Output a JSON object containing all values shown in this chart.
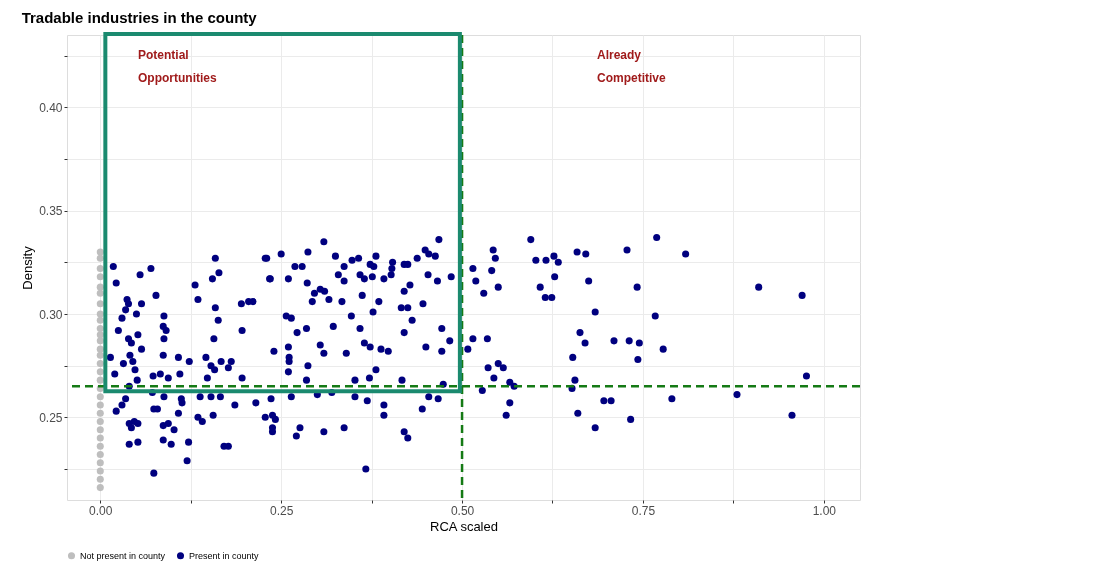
{
  "chart_data": {
    "type": "scatter",
    "title": "Tradable industries in the county",
    "xlabel": "RCA scaled",
    "ylabel": "Density",
    "xlim": [
      -0.046,
      1.05
    ],
    "ylim": [
      0.21,
      0.435
    ],
    "xticks": [
      {
        "value": 0,
        "label": "0.00"
      },
      {
        "value": 0.125,
        "label": null
      },
      {
        "value": 0.25,
        "label": "0.25"
      },
      {
        "value": 0.375,
        "label": null
      },
      {
        "value": 0.5,
        "label": "0.50"
      },
      {
        "value": 0.625,
        "label": null
      },
      {
        "value": 0.75,
        "label": "0.75"
      },
      {
        "value": 0.875,
        "label": null
      },
      {
        "value": 1,
        "label": "1.00"
      }
    ],
    "yticks": [
      {
        "value": 0.225,
        "label": null
      },
      {
        "value": 0.25,
        "label": "0.25"
      },
      {
        "value": 0.275,
        "label": null
      },
      {
        "value": 0.3,
        "label": "0.30"
      },
      {
        "value": 0.325,
        "label": null
      },
      {
        "value": 0.35,
        "label": "0.35"
      },
      {
        "value": 0.375,
        "label": null
      },
      {
        "value": 0.4,
        "label": "0.40"
      },
      {
        "value": 0.425,
        "label": null
      }
    ],
    "grid": true,
    "legend": "bottom",
    "marker": "circle",
    "series": [
      {
        "name": "Not present in county",
        "color": "#bebebe",
        "x": [
          0,
          0,
          0,
          0,
          0,
          0,
          0,
          0,
          0,
          0,
          0,
          0,
          0,
          0,
          0,
          0,
          0,
          0,
          0,
          0,
          0,
          0,
          0,
          0,
          0,
          0,
          0,
          0,
          0,
          0
        ],
        "values": [
          0.33,
          0.327,
          0.322,
          0.318,
          0.313,
          0.31,
          0.305,
          0.3,
          0.297,
          0.293,
          0.29,
          0.287,
          0.283,
          0.28,
          0.276,
          0.272,
          0.268,
          0.264,
          0.26,
          0.256,
          0.252,
          0.248,
          0.244,
          0.24,
          0.236,
          0.232,
          0.228,
          0.224,
          0.22,
          0.216
        ]
      },
      {
        "name": "Present in county",
        "color": "#00007f",
        "x": [
          0.595,
          0.543,
          0.546,
          0.515,
          0.541,
          0.519,
          0.55,
          0.53,
          0.602,
          0.616,
          0.627,
          0.633,
          0.628,
          0.608,
          0.615,
          0.624,
          0.659,
          0.671,
          0.675,
          0.684,
          0.728,
          0.769,
          0.742,
          0.767,
          0.515,
          0.535,
          0.508,
          0.663,
          0.67,
          0.653,
          0.71,
          0.731,
          0.745,
          0.743,
          0.778,
          0.536,
          0.55,
          0.557,
          0.544,
          0.566,
          0.572,
          0.656,
          0.652,
          0.528,
          0.566,
          0.561,
          0.696,
          0.706,
          0.66,
          0.684,
          0.733,
          0.809,
          0.91,
          0.97,
          0.976,
          0.79,
          0.88,
          0.956,
          0.018,
          0.07,
          0.022,
          0.055,
          0.159,
          0.164,
          0.155,
          0.131,
          0.135,
          0.077,
          0.037,
          0.039,
          0.057,
          0.035,
          0.05,
          0.03,
          0.088,
          0.087,
          0.091,
          0.088,
          0.025,
          0.052,
          0.039,
          0.043,
          0.057,
          0.157,
          0.159,
          0.163,
          0.195,
          0.205,
          0.211,
          0.196,
          0.228,
          0.234,
          0.014,
          0.041,
          0.032,
          0.045,
          0.048,
          0.02,
          0.051,
          0.087,
          0.108,
          0.123,
          0.146,
          0.153,
          0.167,
          0.181,
          0.177,
          0.158,
          0.11,
          0.073,
          0.083,
          0.094,
          0.148,
          0.196,
          0.04,
          0.072,
          0.088,
          0.112,
          0.113,
          0.138,
          0.153,
          0.166,
          0.186,
          0.215,
          0.035,
          0.03,
          0.022,
          0.074,
          0.079,
          0.108,
          0.135,
          0.141,
          0.156,
          0.228,
          0.04,
          0.047,
          0.052,
          0.043,
          0.087,
          0.094,
          0.102,
          0.087,
          0.098,
          0.04,
          0.052,
          0.122,
          0.171,
          0.177,
          0.12,
          0.074,
          0.309,
          0.25,
          0.287,
          0.23,
          0.325,
          0.269,
          0.279,
          0.235,
          0.26,
          0.286,
          0.337,
          0.348,
          0.357,
          0.381,
          0.373,
          0.378,
          0.404,
          0.403,
          0.402,
          0.42,
          0.425,
          0.438,
          0.449,
          0.468,
          0.454,
          0.463,
          0.329,
          0.337,
          0.359,
          0.365,
          0.376,
          0.392,
          0.453,
          0.466,
          0.485,
          0.428,
          0.42,
          0.296,
          0.304,
          0.31,
          0.293,
          0.316,
          0.334,
          0.362,
          0.385,
          0.446,
          0.257,
          0.264,
          0.347,
          0.377,
          0.416,
          0.425,
          0.431,
          0.322,
          0.359,
          0.285,
          0.272,
          0.42,
          0.472,
          0.483,
          0.24,
          0.26,
          0.304,
          0.309,
          0.34,
          0.365,
          0.373,
          0.388,
          0.398,
          0.45,
          0.472,
          0.261,
          0.261,
          0.26,
          0.287,
          0.285,
          0.381,
          0.372,
          0.352,
          0.417,
          0.474,
          0.236,
          0.264,
          0.3,
          0.32,
          0.352,
          0.369,
          0.392,
          0.392,
          0.445,
          0.454,
          0.467,
          0.238,
          0.242,
          0.238,
          0.238,
          0.276,
          0.271,
          0.309,
          0.337,
          0.42,
          0.425,
          0.367
        ],
        "values": [
          0.336,
          0.331,
          0.327,
          0.322,
          0.321,
          0.316,
          0.313,
          0.31,
          0.326,
          0.326,
          0.328,
          0.325,
          0.318,
          0.313,
          0.308,
          0.308,
          0.33,
          0.329,
          0.316,
          0.301,
          0.331,
          0.337,
          0.313,
          0.299,
          0.288,
          0.288,
          0.283,
          0.291,
          0.286,
          0.279,
          0.287,
          0.287,
          0.286,
          0.278,
          0.283,
          0.274,
          0.276,
          0.274,
          0.269,
          0.267,
          0.265,
          0.268,
          0.264,
          0.263,
          0.257,
          0.251,
          0.258,
          0.258,
          0.252,
          0.245,
          0.249,
          0.329,
          0.313,
          0.309,
          0.27,
          0.259,
          0.261,
          0.251,
          0.323,
          0.322,
          0.315,
          0.319,
          0.327,
          0.32,
          0.317,
          0.314,
          0.307,
          0.309,
          0.307,
          0.305,
          0.305,
          0.302,
          0.3,
          0.298,
          0.299,
          0.294,
          0.292,
          0.288,
          0.292,
          0.29,
          0.288,
          0.286,
          0.283,
          0.288,
          0.303,
          0.297,
          0.305,
          0.306,
          0.306,
          0.292,
          0.327,
          0.317,
          0.279,
          0.28,
          0.276,
          0.277,
          0.273,
          0.271,
          0.268,
          0.28,
          0.279,
          0.277,
          0.279,
          0.275,
          0.277,
          0.277,
          0.274,
          0.273,
          0.271,
          0.27,
          0.271,
          0.269,
          0.269,
          0.269,
          0.265,
          0.262,
          0.26,
          0.259,
          0.257,
          0.26,
          0.26,
          0.26,
          0.256,
          0.257,
          0.259,
          0.256,
          0.253,
          0.254,
          0.254,
          0.252,
          0.25,
          0.248,
          0.251,
          0.25,
          0.247,
          0.248,
          0.247,
          0.245,
          0.246,
          0.247,
          0.244,
          0.239,
          0.237,
          0.237,
          0.238,
          0.238,
          0.236,
          0.236,
          0.229,
          0.223,
          0.335,
          0.329,
          0.33,
          0.327,
          0.328,
          0.323,
          0.323,
          0.317,
          0.317,
          0.315,
          0.323,
          0.326,
          0.327,
          0.328,
          0.324,
          0.323,
          0.325,
          0.322,
          0.319,
          0.324,
          0.324,
          0.327,
          0.331,
          0.336,
          0.329,
          0.328,
          0.319,
          0.316,
          0.319,
          0.317,
          0.318,
          0.317,
          0.319,
          0.316,
          0.318,
          0.314,
          0.311,
          0.31,
          0.312,
          0.311,
          0.306,
          0.307,
          0.306,
          0.309,
          0.306,
          0.305,
          0.299,
          0.298,
          0.299,
          0.301,
          0.303,
          0.303,
          0.297,
          0.294,
          0.293,
          0.293,
          0.291,
          0.291,
          0.293,
          0.287,
          0.282,
          0.284,
          0.285,
          0.281,
          0.281,
          0.286,
          0.284,
          0.283,
          0.282,
          0.284,
          0.282,
          0.279,
          0.277,
          0.272,
          0.275,
          0.268,
          0.273,
          0.269,
          0.268,
          0.268,
          0.266,
          0.259,
          0.26,
          0.261,
          0.262,
          0.26,
          0.258,
          0.256,
          0.251,
          0.254,
          0.26,
          0.259,
          0.251,
          0.249,
          0.245,
          0.243,
          0.245,
          0.241,
          0.243,
          0.245,
          0.243,
          0.24,
          0.225
        ]
      }
    ],
    "ref_lines": [
      {
        "axis": "x",
        "value": 0.5,
        "color": "#157a15",
        "line_style": "dashed"
      },
      {
        "axis": "y",
        "value": 0.265,
        "color": "#157a15",
        "line_style": "dashed"
      }
    ],
    "annotations": [
      "Potential Opportunities",
      "Already Competitive"
    ]
  }
}
